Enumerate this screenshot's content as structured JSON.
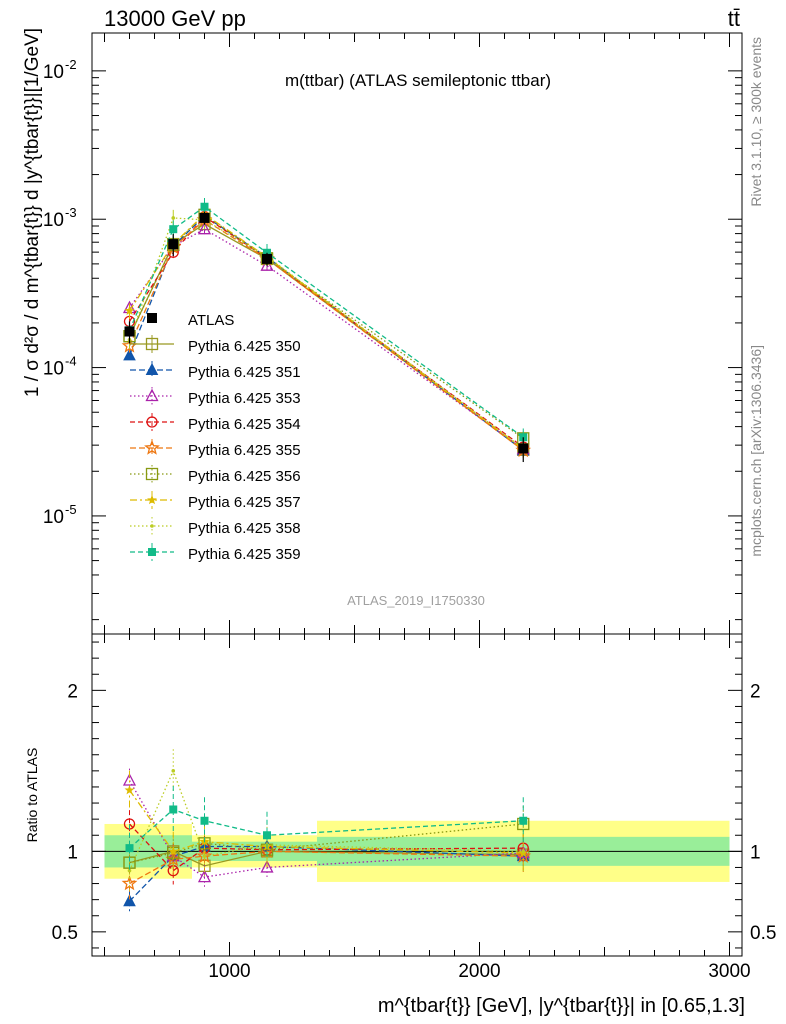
{
  "header": {
    "left": "13000 GeV pp",
    "right": "tt̄"
  },
  "side_labels": {
    "rivet": "Rivet 3.1.10, ≥ 300k events",
    "mcplots": "mcplots.cern.ch [arXiv:1306.3436]"
  },
  "watermark": "ATLAS_2019_I1750330",
  "chart_data": {
    "type": "scatter",
    "title": "m(ttbar) (ATLAS semileptonic ttbar)",
    "ylabel_main": "1 / σ d²σ / d m^{tbar{t}} d |y^{tbar{t}}|[1/GeV]",
    "ylabel_ratio": "Ratio to ATLAS",
    "xlabel": "m^{tbar{t}} [GeV], |y^{tbar{t}}| in [0.65,1.3]",
    "x_range": [
      450,
      3050
    ],
    "y_range_main": [
      1.6e-06,
      0.018
    ],
    "y_scale_main": "log",
    "y_range_ratio": [
      0.35,
      2.35
    ],
    "x_ticks": [
      1000,
      2000,
      3000
    ],
    "x_tick_labels": [
      "1000",
      "2000",
      "3000"
    ],
    "y_ticks_main_labels": [
      "10^-5",
      "10^-4",
      "10^-3",
      "10^-2"
    ],
    "y_ticks_ratio": [
      0.5,
      1,
      2
    ],
    "y_ticks_ratio_labels": [
      "0.5",
      "1",
      "2"
    ],
    "legend_position": "middle-left",
    "bins": [
      [
        500,
        700
      ],
      [
        700,
        850
      ],
      [
        850,
        950
      ],
      [
        950,
        1350
      ],
      [
        1350,
        3000
      ]
    ],
    "x": [
      600,
      775,
      900,
      1150,
      2175
    ],
    "data": {
      "name": "ATLAS",
      "values": [
        0.000175,
        0.00068,
        0.00102,
        0.00054,
        2.85e-05
      ],
      "band_inner": [
        0.1,
        0.1,
        0.06,
        0.06,
        0.09
      ],
      "band_outer": [
        0.17,
        0.17,
        0.1,
        0.1,
        0.19
      ]
    },
    "series": [
      {
        "name": "Pythia 6.425 350",
        "color": "#999922",
        "marker": "square-open",
        "dash": "solid",
        "ratio": [
          0.93,
          1.0,
          0.91,
          1.0,
          0.98
        ]
      },
      {
        "name": "Pythia 6.425 351",
        "color": "#1155aa",
        "marker": "triangle-filled",
        "dash": "6,3",
        "ratio": [
          0.69,
          0.97,
          1.03,
          1.03,
          0.97
        ]
      },
      {
        "name": "Pythia 6.425 353",
        "color": "#aa22aa",
        "marker": "triangle-open",
        "dash": "1.5,2.5",
        "ratio": [
          1.44,
          0.97,
          0.84,
          0.9,
          0.99
        ]
      },
      {
        "name": "Pythia 6.425 354",
        "color": "#dd1111",
        "marker": "circle-open",
        "dash": "5,3",
        "ratio": [
          1.17,
          0.88,
          1.02,
          1.01,
          1.02
        ]
      },
      {
        "name": "Pythia 6.425 355",
        "color": "#ee7711",
        "marker": "star-open",
        "dash": "6,3",
        "ratio": [
          0.8,
          0.95,
          0.97,
          1.0,
          0.97
        ]
      },
      {
        "name": "Pythia 6.425 356",
        "color": "#889911",
        "marker": "square-open",
        "dash": "1.5,2.5",
        "ratio": [
          0.93,
          0.99,
          1.05,
          1.01,
          1.17
        ]
      },
      {
        "name": "Pythia 6.425 357",
        "color": "#ddbb00",
        "marker": "star-small",
        "dash": "7,3,2,3",
        "ratio": [
          1.38,
          1.0,
          1.06,
          1.03,
          0.99
        ]
      },
      {
        "name": "Pythia 6.425 358",
        "color": "#bbcc22",
        "marker": "dot",
        "dash": "1.5,2.5",
        "ratio": [
          0.88,
          1.5,
          0.97,
          1.04,
          1.0
        ]
      },
      {
        "name": "Pythia 6.425 359",
        "color": "#11bb88",
        "marker": "square-filled",
        "dash": "5,3",
        "ratio": [
          1.02,
          1.26,
          1.19,
          1.1,
          1.19
        ]
      }
    ]
  }
}
